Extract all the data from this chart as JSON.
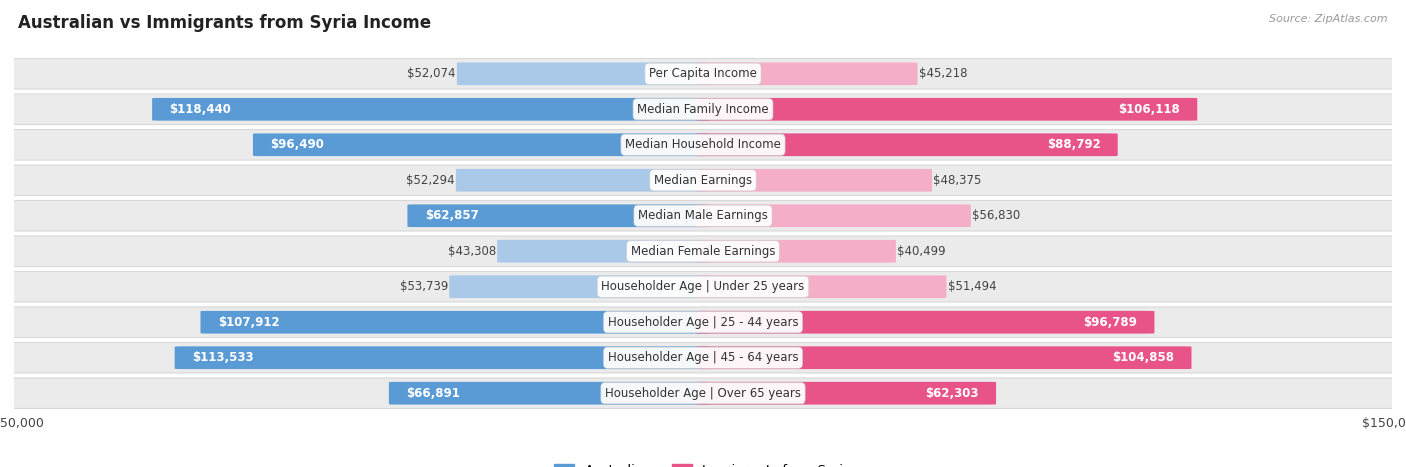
{
  "title": "Australian vs Immigrants from Syria Income",
  "source": "Source: ZipAtlas.com",
  "categories": [
    "Per Capita Income",
    "Median Family Income",
    "Median Household Income",
    "Median Earnings",
    "Median Male Earnings",
    "Median Female Earnings",
    "Householder Age | Under 25 years",
    "Householder Age | 25 - 44 years",
    "Householder Age | 45 - 64 years",
    "Householder Age | Over 65 years"
  ],
  "australian_values": [
    52074,
    118440,
    96490,
    52294,
    62857,
    43308,
    53739,
    107912,
    113533,
    66891
  ],
  "syria_values": [
    45218,
    106118,
    88792,
    48375,
    56830,
    40499,
    51494,
    96789,
    104858,
    62303
  ],
  "aus_light_color": "#aac9e8",
  "aus_solid_color": "#5b9bd5",
  "syr_light_color": "#f4aec8",
  "syr_solid_color": "#e8538a",
  "max_value": 150000,
  "bar_height": 0.62,
  "background_color": "#ffffff",
  "row_bg_color": "#ebebeb",
  "row_border_color": "#d8d8d8",
  "label_fontsize": 8.5,
  "title_fontsize": 12,
  "value_fontsize": 8.5,
  "inside_threshold": 0.38
}
